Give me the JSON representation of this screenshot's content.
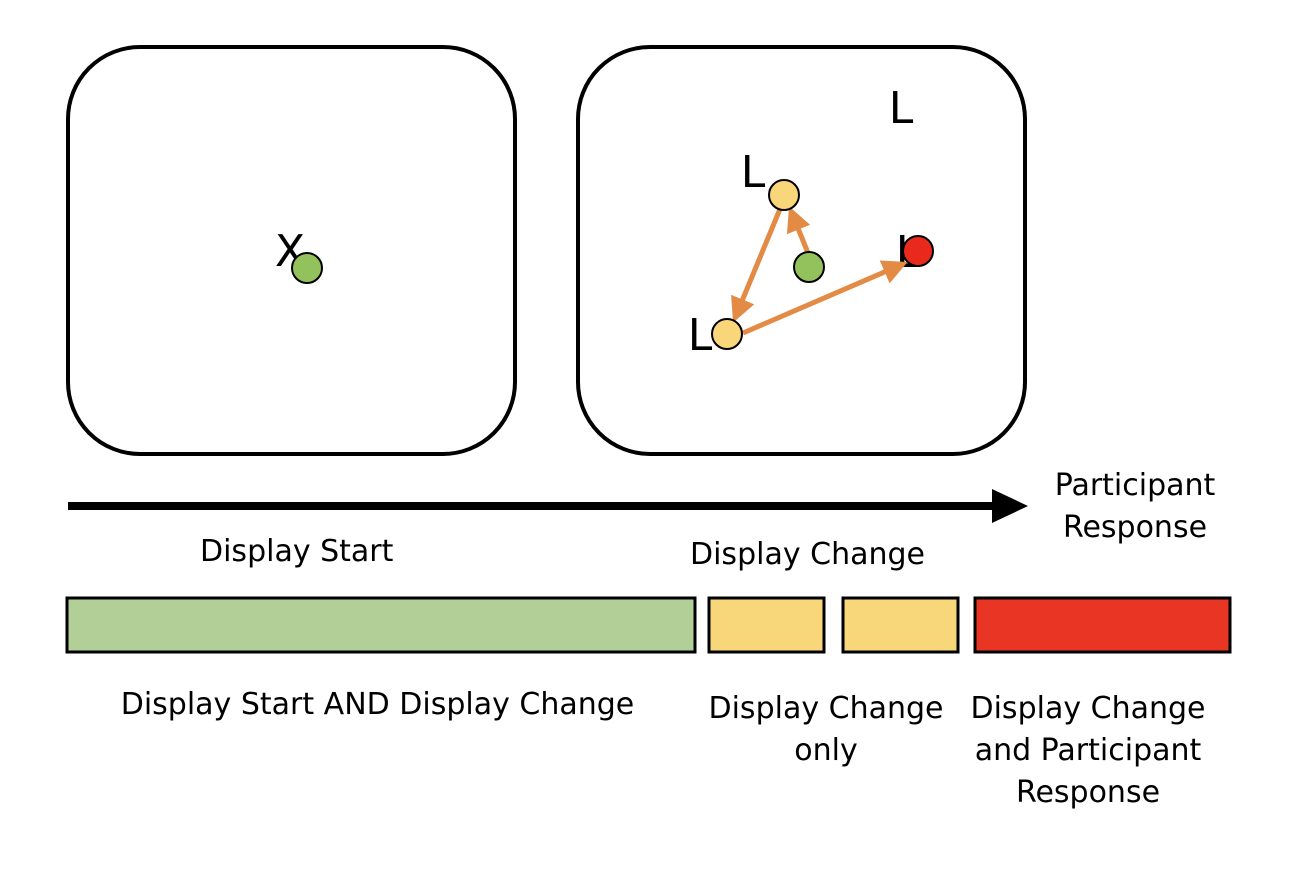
{
  "panels": {
    "start": {
      "fixation_symbol": "X"
    },
    "change": {
      "letters": [
        "L",
        "L",
        "L",
        "L"
      ]
    }
  },
  "labels": {
    "display_start": "Display Start",
    "display_change": "Display Change",
    "participant_response": [
      "Participant",
      "Response"
    ]
  },
  "legend": [
    {
      "color": "#b1cf96",
      "text": [
        "Display Start AND Display Change"
      ]
    },
    {
      "color": "#f8d77a",
      "text": [
        "Display Change",
        "only"
      ]
    },
    {
      "color": "#e83524",
      "text": [
        "Display Change",
        "and Participant",
        "Response"
      ]
    }
  ],
  "colors": {
    "green": "#93c15b",
    "yellow": "#fad67a",
    "red": "#e8291c",
    "arrow": "#e38a45"
  }
}
